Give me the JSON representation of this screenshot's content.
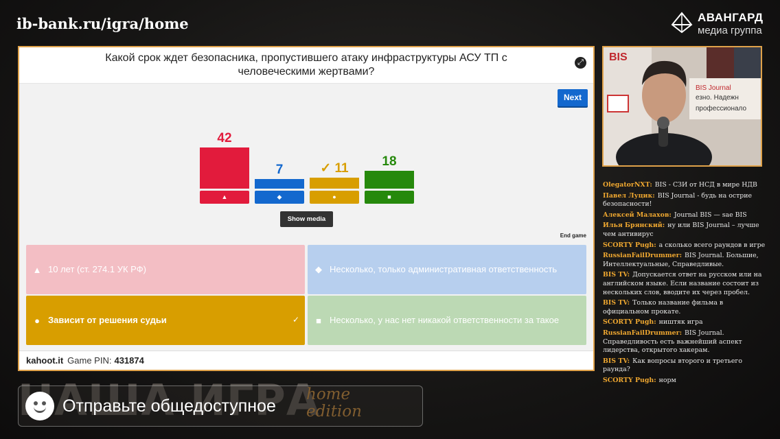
{
  "header": {
    "url": "ib-bank.ru/igra/home",
    "logo_title": "АВАНГАРД",
    "logo_subtitle": "медиа группа"
  },
  "kahoot": {
    "question": "Какой срок ждет безопасника, пропустившего атаку инфраструктуры АСУ ТП с человеческими жертвами?",
    "next_label": "Next",
    "show_media_label": "Show media",
    "end_game_label": "End game",
    "footer_site": "kahoot.it",
    "footer_pin_label": "Game PIN:",
    "footer_pin": "431874",
    "results": [
      {
        "count": 42,
        "color": "#e21b3c",
        "shape": "▲",
        "correct": false
      },
      {
        "count": 7,
        "color": "#1368ce",
        "shape": "◆",
        "correct": false
      },
      {
        "count": 11,
        "color": "#d89e00",
        "shape": "●",
        "correct": true,
        "check": "✓"
      },
      {
        "count": 18,
        "color": "#26890c",
        "shape": "■",
        "correct": false
      }
    ],
    "answers": [
      {
        "shape": "▲",
        "text": "10 лет (ст. 274.1 УК РФ)",
        "bg": "#f3bec4",
        "fg": "#ffffff"
      },
      {
        "shape": "◆",
        "text": "Несколько, только административная ответственность",
        "bg": "#b7cfee",
        "fg": "#ffffff"
      },
      {
        "shape": "●",
        "text": "Зависит от решения судьи",
        "bg": "#d89e00",
        "fg": "#ffffff",
        "tick": "✓"
      },
      {
        "shape": "■",
        "text": "Несколько, у нас нет никакой ответственности за такое",
        "bg": "#bcd9b4",
        "fg": "#ffffff"
      }
    ]
  },
  "webcam": {
    "sign_bis": "BIS",
    "sign_journal": "BIS Journal",
    "sign_line1": "езно. Надежн",
    "sign_line2": "профессионало"
  },
  "chat": [
    {
      "user": "OlegatorNXT:",
      "text": "BIS - СЗИ от НСД в мире НДВ"
    },
    {
      "user": "Павел Луцик:",
      "text": "BIS Journal - будь на острие безопасности!"
    },
    {
      "user": "Алексей Малахов:",
      "text": "Journal BIS — sae BIS"
    },
    {
      "user": "Илья Брянский:",
      "text": "ну или BIS Journal – лучше чем антивирус"
    },
    {
      "user": "SCORTY Pugh:",
      "text": "а сколько всего раундов в игре"
    },
    {
      "user": "RussianFailDrummer:",
      "text": "BIS Journal. Большие, Интеллектуальные, Справедливые."
    },
    {
      "user": "BIS TV:",
      "text": "Допускается ответ на русском или на английском языке. Если название состоит из нескольких слов, вводите их через пробел."
    },
    {
      "user": "BIS TV:",
      "text": "Только название фильма в официальном прокате."
    },
    {
      "user": "SCORTY Pugh:",
      "text": "ништяк игра"
    },
    {
      "user": "RussianFailDrummer:",
      "text": "BIS Journal. Справедливость есть важнейший аспект лидерства, открытого хакерам."
    },
    {
      "user": "BIS TV:",
      "text": "Как вопросы второго и третьего раунда?"
    },
    {
      "user": "SCORTY Pugh:",
      "text": "норм"
    }
  ],
  "banner": {
    "big_text": "НАША ИГРА",
    "home_line1": "home",
    "home_line2": "edition"
  },
  "toast": {
    "label": "Отправьте общедоступное"
  }
}
